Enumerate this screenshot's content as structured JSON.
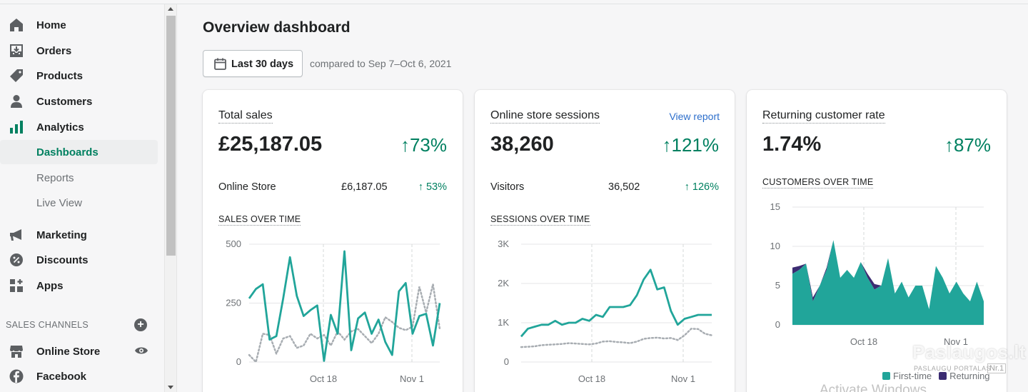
{
  "sidebar": {
    "items": [
      {
        "label": "Home",
        "icon": "home-icon"
      },
      {
        "label": "Orders",
        "icon": "orders-icon"
      },
      {
        "label": "Products",
        "icon": "tag-icon"
      },
      {
        "label": "Customers",
        "icon": "person-icon"
      },
      {
        "label": "Analytics",
        "icon": "bar-chart-icon"
      }
    ],
    "analytics_sub": [
      {
        "label": "Dashboards",
        "active": true
      },
      {
        "label": "Reports",
        "active": false
      },
      {
        "label": "Live View",
        "active": false
      }
    ],
    "items2": [
      {
        "label": "Marketing",
        "icon": "megaphone-icon"
      },
      {
        "label": "Discounts",
        "icon": "discount-icon"
      },
      {
        "label": "Apps",
        "icon": "apps-icon"
      }
    ],
    "sales_channels_heading": "SALES CHANNELS",
    "channels": [
      {
        "label": "Online Store",
        "icon": "store-icon"
      },
      {
        "label": "Facebook",
        "icon": "facebook-icon"
      }
    ]
  },
  "main": {
    "title": "Overview dashboard",
    "date_range_label": "Last 30 days",
    "compare_text": "compared to Sep 7–Oct 6, 2021"
  },
  "cards": {
    "sales": {
      "title": "Total sales",
      "value": "£25,187.05",
      "change": "73%",
      "row_label": "Online Store",
      "row_value": "£6,187.05",
      "row_change": "53%",
      "chart_title": "SALES OVER TIME"
    },
    "sessions": {
      "title": "Online store sessions",
      "link": "View report",
      "value": "38,260",
      "change": "121%",
      "row_label": "Visitors",
      "row_value": "36,502",
      "row_change": "126%",
      "chart_title": "SESSIONS OVER TIME"
    },
    "returning": {
      "title": "Returning customer rate",
      "value": "1.74%",
      "change": "87%",
      "chart_title": "CUSTOMERS OVER TIME",
      "legend_first": "First-time",
      "legend_returning": "Returning"
    }
  },
  "colors": {
    "accent": "#008060",
    "series_primary": "#21a59a",
    "series_secondary": "#a8adb2",
    "returning": "#3b2c72",
    "link": "#2c6ecb"
  },
  "overlay": {
    "watermark": "Paslaugos.lt",
    "watermark_sub": "PASLAUGŲ PORTALAS",
    "watermark_nr": "Nr.1",
    "activate": "Activate Windows"
  },
  "chart_data": [
    {
      "type": "line",
      "title": "SALES OVER TIME",
      "x_ticks": [
        "Oct 18",
        "Nov 1"
      ],
      "y_ticks": [
        "0",
        "250",
        "500"
      ],
      "ylim": [
        0,
        500
      ],
      "series": [
        {
          "values": [
            270,
            310,
            330,
            95,
            110,
            270,
            445,
            280,
            195,
            220,
            240,
            5,
            200,
            120,
            470,
            50,
            185,
            210,
            120,
            180,
            85,
            30,
            300,
            335,
            120,
            195,
            205,
            70,
            250
          ]
        },
        {
          "values": [
            30,
            0,
            120,
            115,
            35,
            100,
            110,
            60,
            70,
            120,
            100,
            115,
            70,
            130,
            95,
            130,
            140,
            110,
            80,
            120,
            190,
            170,
            145,
            135,
            150,
            320,
            210,
            330,
            140
          ]
        }
      ]
    },
    {
      "type": "line",
      "title": "SESSIONS OVER TIME",
      "x_ticks": [
        "Oct 18",
        "Nov 1"
      ],
      "y_ticks": [
        "0",
        "1K",
        "2K",
        "3K"
      ],
      "ylim": [
        0,
        3000
      ],
      "series": [
        {
          "values": [
            650,
            850,
            900,
            950,
            950,
            1050,
            950,
            1000,
            1000,
            1100,
            1050,
            1200,
            1150,
            1400,
            1400,
            1400,
            1450,
            1700,
            2100,
            2350,
            1850,
            1900,
            1300,
            950,
            1100,
            1150,
            1200,
            1200,
            1200
          ]
        },
        {
          "values": [
            380,
            390,
            400,
            430,
            440,
            450,
            460,
            480,
            470,
            460,
            450,
            470,
            520,
            530,
            510,
            500,
            480,
            520,
            590,
            610,
            620,
            600,
            610,
            560,
            680,
            850,
            840,
            720,
            680
          ]
        }
      ]
    },
    {
      "type": "area",
      "title": "CUSTOMERS OVER TIME",
      "x_ticks": [
        "Oct 18",
        "Nov 1"
      ],
      "y_ticks": [
        "0",
        "5",
        "10",
        "15"
      ],
      "ylim": [
        0,
        15
      ],
      "series": [
        {
          "name": "First-time",
          "values": [
            6.5,
            7,
            7.8,
            3,
            5,
            7,
            10.8,
            6,
            7,
            6,
            8,
            6,
            4.5,
            5,
            8.5,
            4,
            5.5,
            3.5,
            5,
            5,
            2,
            7.5,
            6,
            4,
            5.5,
            4,
            3,
            5.5,
            3
          ]
        },
        {
          "name": "Returning",
          "values": [
            0.8,
            0.5,
            0,
            0.5,
            0,
            0.3,
            0,
            0,
            0,
            0,
            0,
            0.5,
            0.7,
            0,
            0,
            0,
            0,
            0,
            0,
            0,
            0,
            0,
            0,
            0,
            0,
            0,
            0,
            0,
            0
          ]
        }
      ]
    }
  ]
}
